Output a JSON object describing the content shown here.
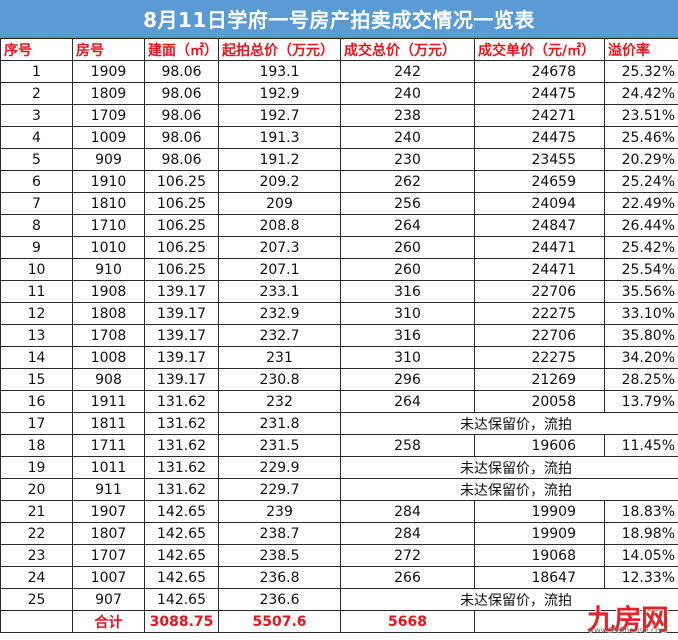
{
  "title": "8月11日学府一号房产拍卖成交情况一览表",
  "headers": [
    "序号",
    "房号",
    "建面（㎡）",
    "起拍总价（万元）",
    "成交总价（万元）",
    "成交单价（元/㎡）",
    "溢价率"
  ],
  "rows": [
    [
      "1",
      "1909",
      "98.06",
      "193.1",
      "242",
      "24678",
      "25.32%"
    ],
    [
      "2",
      "1809",
      "98.06",
      "192.9",
      "240",
      "24475",
      "24.42%"
    ],
    [
      "3",
      "1709",
      "98.06",
      "192.7",
      "238",
      "24271",
      "23.51%"
    ],
    [
      "4",
      "1009",
      "98.06",
      "191.3",
      "240",
      "24475",
      "25.46%"
    ],
    [
      "5",
      "909",
      "98.06",
      "191.2",
      "230",
      "23455",
      "20.29%"
    ],
    [
      "6",
      "1910",
      "106.25",
      "209.2",
      "262",
      "24659",
      "25.24%"
    ],
    [
      "7",
      "1810",
      "106.25",
      "209",
      "256",
      "24094",
      "22.49%"
    ],
    [
      "8",
      "1710",
      "106.25",
      "208.8",
      "264",
      "24847",
      "26.44%"
    ],
    [
      "9",
      "1010",
      "106.25",
      "207.3",
      "260",
      "24471",
      "25.42%"
    ],
    [
      "10",
      "910",
      "106.25",
      "207.1",
      "260",
      "24471",
      "25.54%"
    ],
    [
      "11",
      "1908",
      "139.17",
      "233.1",
      "316",
      "22706",
      "35.56%"
    ],
    [
      "12",
      "1808",
      "139.17",
      "232.9",
      "310",
      "22275",
      "33.10%"
    ],
    [
      "13",
      "1708",
      "139.17",
      "232.7",
      "316",
      "22706",
      "35.80%"
    ],
    [
      "14",
      "1008",
      "139.17",
      "231",
      "310",
      "22275",
      "34.20%"
    ],
    [
      "15",
      "908",
      "139.17",
      "230.8",
      "296",
      "21269",
      "28.25%"
    ],
    [
      "16",
      "1911",
      "131.62",
      "232",
      "264",
      "20058",
      "13.79%"
    ],
    [
      "17",
      "1811",
      "131.62",
      "231.8",
      "",
      "",
      ""
    ],
    [
      "18",
      "1711",
      "131.62",
      "231.5",
      "258",
      "19606",
      "11.45%"
    ],
    [
      "19",
      "1011",
      "131.62",
      "229.9",
      "",
      "",
      ""
    ],
    [
      "20",
      "911",
      "131.62",
      "229.7",
      "",
      "",
      ""
    ],
    [
      "21",
      "1907",
      "142.65",
      "239",
      "284",
      "19909",
      "18.83%"
    ],
    [
      "22",
      "1807",
      "142.65",
      "238.7",
      "284",
      "19909",
      "18.98%"
    ],
    [
      "23",
      "1707",
      "142.65",
      "238.5",
      "272",
      "19068",
      "14.05%"
    ],
    [
      "24",
      "1007",
      "142.65",
      "236.8",
      "266",
      "18647",
      "12.33%"
    ],
    [
      "25",
      "907",
      "142.65",
      "236.6",
      "",
      "",
      ""
    ]
  ],
  "unsold_text": "未达保留价，流拍",
  "total": {
    "label": "合计",
    "area": "3088.75",
    "start_total": "5507.6",
    "deal_total": "5668"
  },
  "watermark": {
    "brand": "九房网",
    "url": "www.999house.com"
  }
}
